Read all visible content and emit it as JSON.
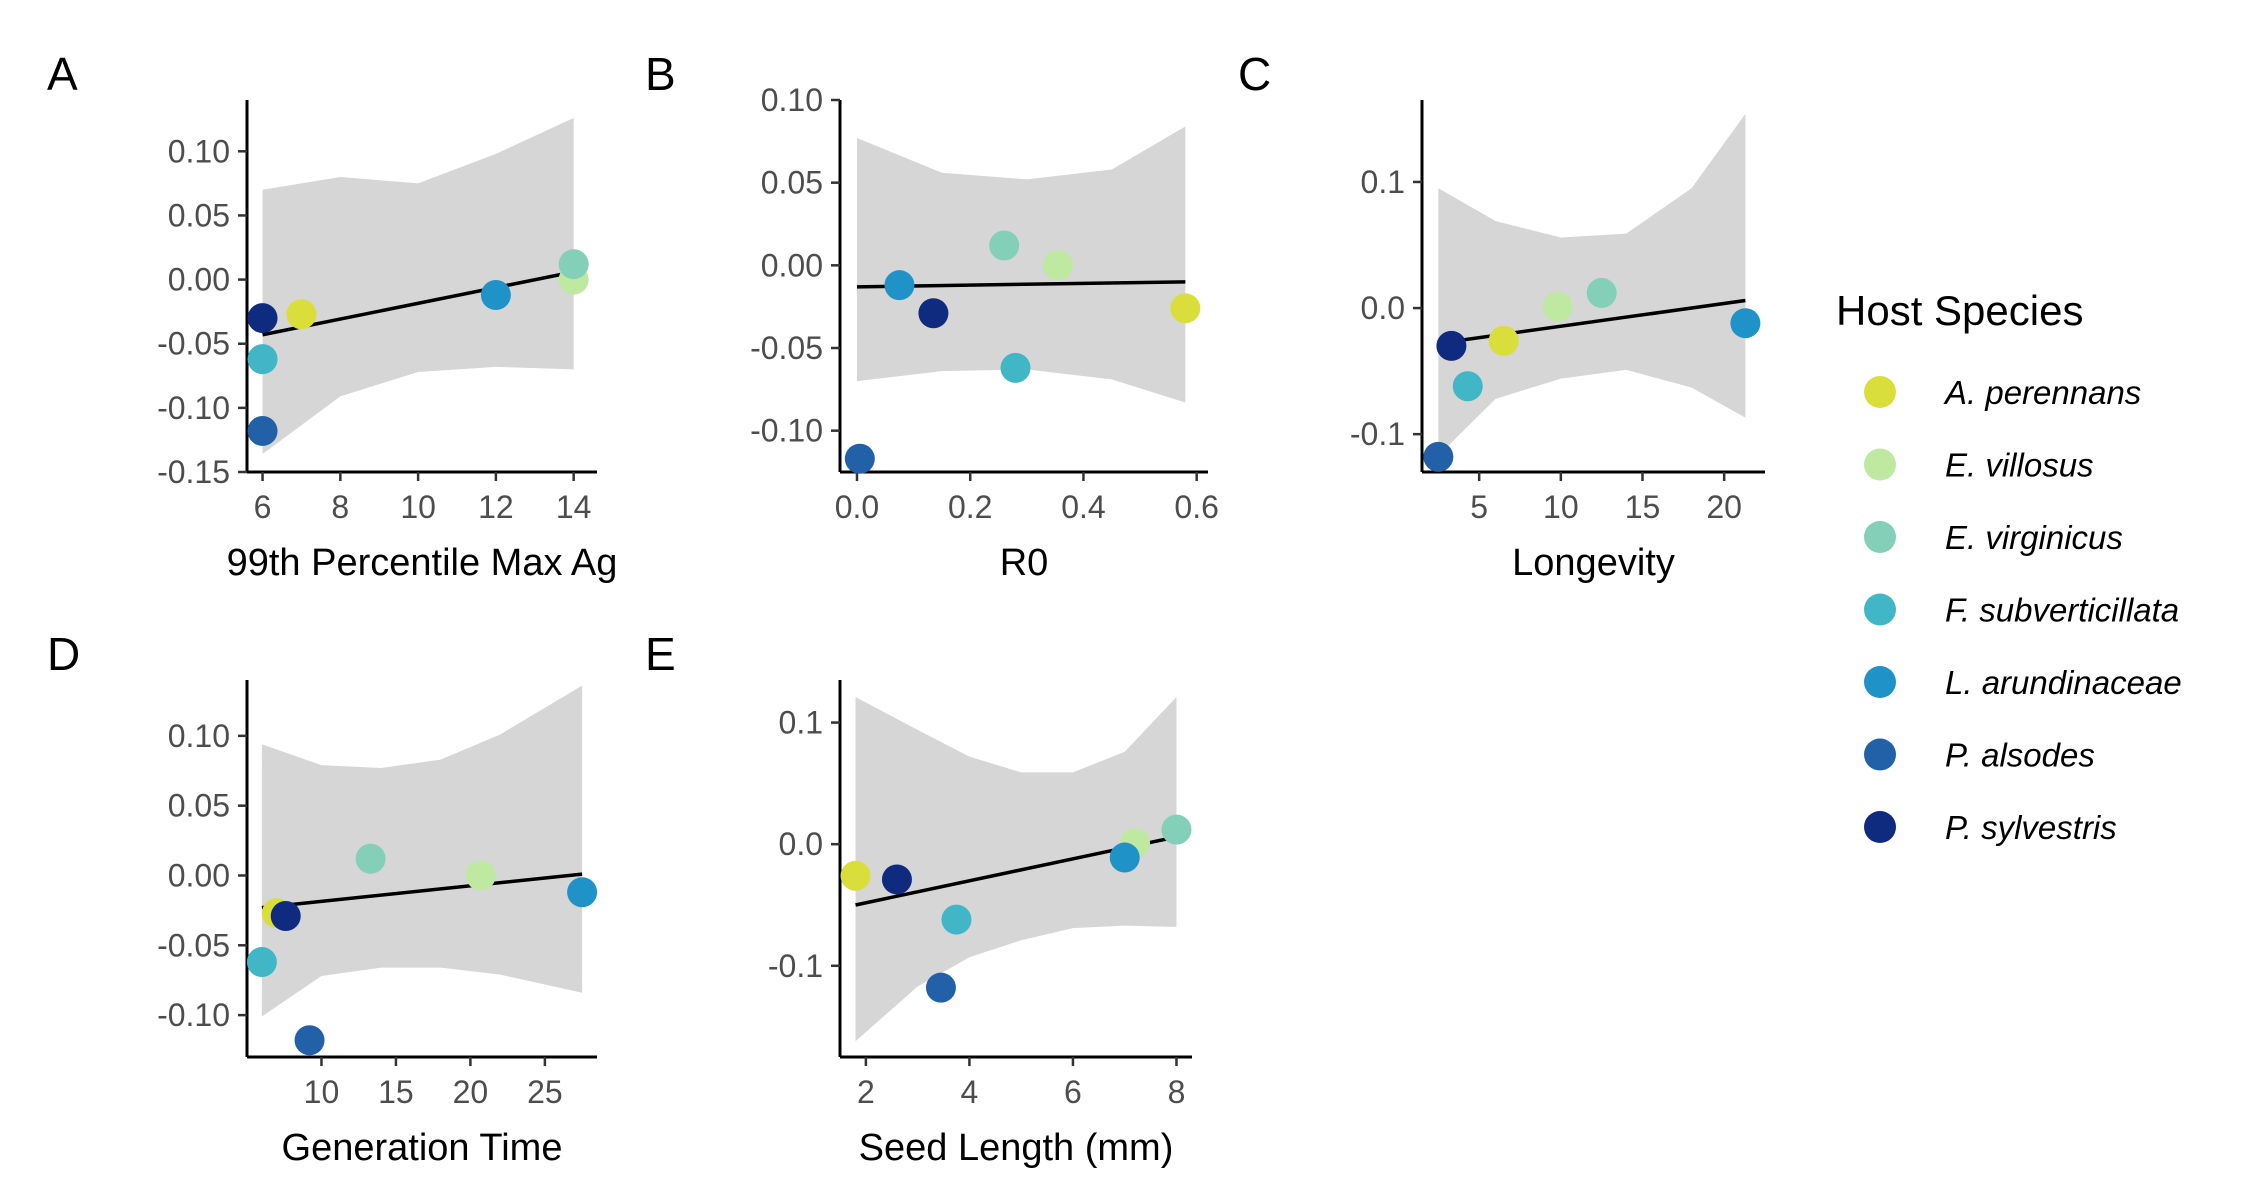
{
  "figure": {
    "legend_title": "Host Species",
    "species": [
      {
        "name": "A. perennans",
        "color": "#d9de3a"
      },
      {
        "name": "E. villosus",
        "color": "#bfe8a0"
      },
      {
        "name": "E. virginicus",
        "color": "#83cfb8"
      },
      {
        "name": "F. subverticillata",
        "color": "#40b6c6"
      },
      {
        "name": "L. arundinaceae",
        "color": "#1f93c7"
      },
      {
        "name": "P. alsodes",
        "color": "#2260a8"
      },
      {
        "name": "P. sylvestris",
        "color": "#0f2b7f"
      }
    ]
  },
  "chart_data": [
    {
      "type": "scatter",
      "tag": "A",
      "xlabel": "99th Percentile Max Ag",
      "ylabel": "",
      "xlim": [
        5.6,
        14.6
      ],
      "ylim": [
        -0.15,
        0.14
      ],
      "xticks": [
        6,
        8,
        10,
        12,
        14
      ],
      "xtick_labels": [
        "6",
        "8",
        "10",
        "12",
        "14"
      ],
      "yticks": [
        0.1,
        0.05,
        0.0,
        -0.05,
        -0.1,
        -0.15
      ],
      "ytick_labels": [
        "0.10",
        "0.05",
        "0.00",
        "-0.05",
        "-0.10",
        "-0.15"
      ],
      "points": [
        {
          "species": "A. perennans",
          "x": 7,
          "y": -0.027
        },
        {
          "species": "E. villosus",
          "x": 14,
          "y": 0.0
        },
        {
          "species": "E. virginicus",
          "x": 14,
          "y": 0.012
        },
        {
          "species": "F. subverticillata",
          "x": 6,
          "y": -0.062
        },
        {
          "species": "L. arundinaceae",
          "x": 12,
          "y": -0.012
        },
        {
          "species": "P. alsodes",
          "x": 6,
          "y": -0.118
        },
        {
          "species": "P. sylvestris",
          "x": 6,
          "y": -0.03
        }
      ],
      "fit": {
        "x": [
          6,
          14
        ],
        "y": [
          -0.043,
          0.006
        ]
      },
      "band": {
        "x": [
          6,
          8,
          10,
          12,
          14
        ],
        "lower": [
          -0.136,
          -0.091,
          -0.072,
          -0.068,
          -0.07
        ],
        "upper": [
          0.07,
          0.08,
          0.075,
          0.098,
          0.126
        ]
      }
    },
    {
      "type": "scatter",
      "tag": "B",
      "xlabel": "R0",
      "ylabel": "",
      "xlim": [
        -0.03,
        0.62
      ],
      "ylim": [
        -0.125,
        0.1
      ],
      "xticks": [
        0.0,
        0.2,
        0.4,
        0.6
      ],
      "xtick_labels": [
        "0.0",
        "0.2",
        "0.4",
        "0.6"
      ],
      "yticks": [
        0.1,
        0.05,
        0.0,
        -0.05,
        -0.1
      ],
      "ytick_labels": [
        "0.10",
        "0.05",
        "0.00",
        "-0.05",
        "-0.10"
      ],
      "points": [
        {
          "species": "A. perennans",
          "x": 0.58,
          "y": -0.026
        },
        {
          "species": "E. villosus",
          "x": 0.355,
          "y": 0.0
        },
        {
          "species": "E. virginicus",
          "x": 0.26,
          "y": 0.012
        },
        {
          "species": "F. subverticillata",
          "x": 0.28,
          "y": -0.062
        },
        {
          "species": "L. arundinaceae",
          "x": 0.075,
          "y": -0.012
        },
        {
          "species": "P. alsodes",
          "x": 0.005,
          "y": -0.117
        },
        {
          "species": "P. sylvestris",
          "x": 0.135,
          "y": -0.029
        }
      ],
      "fit": {
        "x": [
          0.0,
          0.58
        ],
        "y": [
          -0.013,
          -0.01
        ]
      },
      "band": {
        "x": [
          0.0,
          0.15,
          0.3,
          0.45,
          0.58
        ],
        "lower": [
          -0.07,
          -0.064,
          -0.063,
          -0.069,
          -0.083
        ],
        "upper": [
          0.077,
          0.056,
          0.052,
          0.058,
          0.084
        ]
      }
    },
    {
      "type": "scatter",
      "tag": "C",
      "xlabel": "Longevity",
      "ylabel": "",
      "xlim": [
        1.5,
        22.5
      ],
      "ylim": [
        -0.13,
        0.165
      ],
      "xticks": [
        5,
        10,
        15,
        20
      ],
      "xtick_labels": [
        "5",
        "10",
        "15",
        "20"
      ],
      "yticks": [
        0.1,
        0.0,
        -0.1
      ],
      "ytick_labels": [
        "0.1",
        "0.0",
        "-0.1"
      ],
      "points": [
        {
          "species": "A. perennans",
          "x": 6.5,
          "y": -0.026
        },
        {
          "species": "E. villosus",
          "x": 9.8,
          "y": 0.001
        },
        {
          "species": "E. virginicus",
          "x": 12.5,
          "y": 0.012
        },
        {
          "species": "F. subverticillata",
          "x": 4.3,
          "y": -0.062
        },
        {
          "species": "L. arundinaceae",
          "x": 21.3,
          "y": -0.012
        },
        {
          "species": "P. alsodes",
          "x": 2.5,
          "y": -0.118
        },
        {
          "species": "P. sylvestris",
          "x": 3.3,
          "y": -0.03
        }
      ],
      "fit": {
        "x": [
          2.5,
          21.3
        ],
        "y": [
          -0.028,
          0.006
        ]
      },
      "band": {
        "x": [
          2.5,
          6,
          10,
          14,
          18,
          21.3
        ],
        "lower": [
          -0.117,
          -0.072,
          -0.056,
          -0.049,
          -0.063,
          -0.087
        ],
        "upper": [
          0.095,
          0.069,
          0.056,
          0.059,
          0.095,
          0.154
        ]
      }
    },
    {
      "type": "scatter",
      "tag": "D",
      "xlabel": "Generation Time",
      "ylabel": "",
      "xlim": [
        5,
        28.5
      ],
      "ylim": [
        -0.13,
        0.14
      ],
      "xticks": [
        10,
        15,
        20,
        25
      ],
      "xtick_labels": [
        "10",
        "15",
        "20",
        "25"
      ],
      "yticks": [
        0.1,
        0.05,
        0.0,
        -0.05,
        -0.1
      ],
      "ytick_labels": [
        "0.10",
        "0.05",
        "0.00",
        "-0.05",
        "-0.10"
      ],
      "points": [
        {
          "species": "A. perennans",
          "x": 7.0,
          "y": -0.027
        },
        {
          "species": "E. villosus",
          "x": 20.7,
          "y": 0.0
        },
        {
          "species": "E. virginicus",
          "x": 13.3,
          "y": 0.012
        },
        {
          "species": "F. subverticillata",
          "x": 6.0,
          "y": -0.062
        },
        {
          "species": "L. arundinaceae",
          "x": 27.5,
          "y": -0.012
        },
        {
          "species": "P. alsodes",
          "x": 9.2,
          "y": -0.118
        },
        {
          "species": "P. sylvestris",
          "x": 7.6,
          "y": -0.029
        }
      ],
      "fit": {
        "x": [
          6.0,
          27.5
        ],
        "y": [
          -0.023,
          0.001
        ]
      },
      "band": {
        "x": [
          6.0,
          10,
          14,
          18,
          22,
          27.5
        ],
        "lower": [
          -0.101,
          -0.072,
          -0.066,
          -0.066,
          -0.071,
          -0.084
        ],
        "upper": [
          0.094,
          0.079,
          0.077,
          0.083,
          0.101,
          0.136
        ]
      }
    },
    {
      "type": "scatter",
      "tag": "E",
      "xlabel": "Seed Length (mm)",
      "ylabel": "",
      "xlim": [
        1.5,
        8.3
      ],
      "ylim": [
        -0.175,
        0.135
      ],
      "xticks": [
        2,
        4,
        6,
        8
      ],
      "xtick_labels": [
        "2",
        "4",
        "6",
        "8"
      ],
      "yticks": [
        0.1,
        0.0,
        -0.1
      ],
      "ytick_labels": [
        "0.1",
        "0.0",
        "-0.1"
      ],
      "points": [
        {
          "species": "A. perennans",
          "x": 1.8,
          "y": -0.026
        },
        {
          "species": "E. villosus",
          "x": 7.2,
          "y": 0.001
        },
        {
          "species": "E. virginicus",
          "x": 8.0,
          "y": 0.012
        },
        {
          "species": "F. subverticillata",
          "x": 3.75,
          "y": -0.062
        },
        {
          "species": "L. arundinaceae",
          "x": 7.0,
          "y": -0.011
        },
        {
          "species": "P. alsodes",
          "x": 3.45,
          "y": -0.118
        },
        {
          "species": "P. sylvestris",
          "x": 2.6,
          "y": -0.029
        }
      ],
      "fit": {
        "x": [
          1.8,
          8.0
        ],
        "y": [
          -0.05,
          0.006
        ]
      },
      "band": {
        "x": [
          1.8,
          3,
          4,
          5,
          6,
          7,
          8
        ],
        "lower": [
          -0.162,
          -0.117,
          -0.093,
          -0.079,
          -0.069,
          -0.067,
          -0.068
        ],
        "upper": [
          0.121,
          0.094,
          0.072,
          0.059,
          0.059,
          0.076,
          0.121
        ]
      }
    }
  ]
}
